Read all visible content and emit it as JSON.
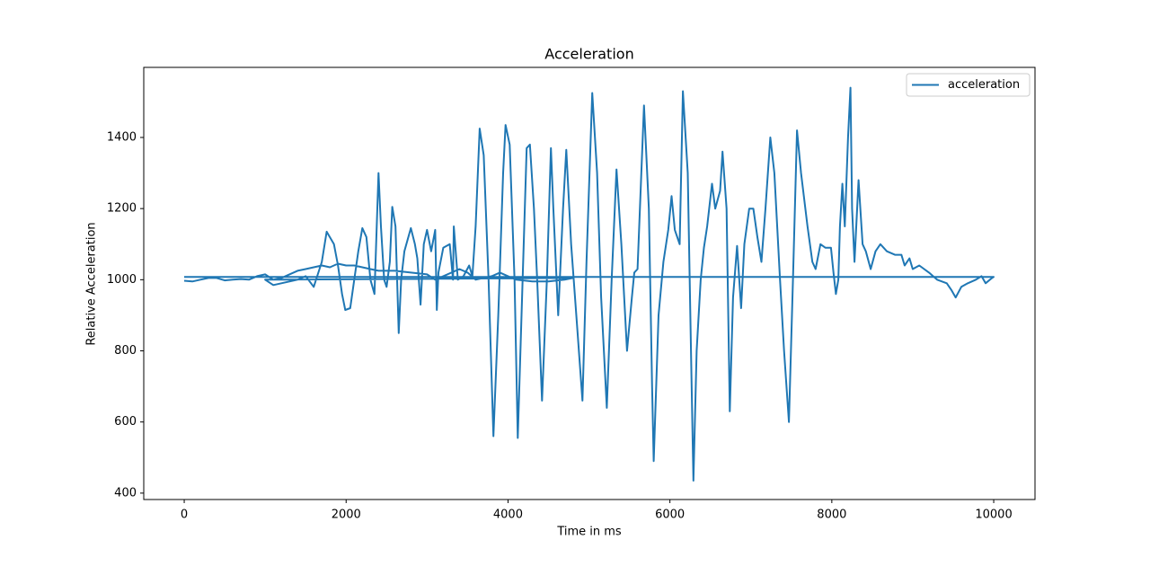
{
  "chart_data": {
    "type": "line",
    "title": "Acceleration",
    "x_label": "Time in ms",
    "y_label": "Relative Acceleration",
    "x": [
      0,
      100,
      200,
      300,
      400,
      500,
      600,
      700,
      800,
      900,
      1000,
      1100,
      1200,
      1300,
      1400,
      1500,
      1600,
      1700,
      1800,
      1900,
      2000,
      2100,
      2200,
      2300,
      2400,
      2600,
      2800,
      3000,
      3100,
      3200,
      3400,
      3500,
      3600,
      3800,
      3900,
      4000,
      4100,
      4300,
      4500,
      4700,
      4800,
      1000,
      1100,
      1200,
      1300,
      1400,
      1500,
      1600,
      1700,
      1760,
      1850,
      1900,
      1950,
      1990,
      2050,
      2100,
      2150,
      2200,
      2250,
      2300,
      2350,
      2400,
      2430,
      2470,
      2500,
      2540,
      2570,
      2610,
      2630,
      2650,
      2680,
      2720,
      2800,
      2850,
      2880,
      2920,
      2960,
      3000,
      3050,
      3100,
      3120,
      3140,
      3200,
      3280,
      3320,
      3330,
      3380,
      3450,
      3520,
      3560,
      3600,
      3650,
      3700,
      3760,
      3820,
      3880,
      3940,
      3970,
      4020,
      4080,
      4120,
      4180,
      4230,
      4270,
      4320,
      4360,
      4420,
      4480,
      4530,
      4560,
      4600,
      4620,
      4680,
      4720,
      4780,
      4860,
      4920,
      4970,
      5040,
      5100,
      5150,
      5220,
      5280,
      5340,
      5400,
      5470,
      5530,
      5560,
      5600,
      5680,
      5740,
      5780,
      5800,
      5860,
      5920,
      5980,
      6020,
      6060,
      6120,
      6160,
      6220,
      6260,
      6290,
      6330,
      6380,
      6420,
      6460,
      6520,
      6560,
      6620,
      6650,
      6700,
      6740,
      6780,
      6830,
      6880,
      6920,
      6980,
      7030,
      7080,
      7130,
      7180,
      7240,
      7290,
      7360,
      7410,
      7470,
      7520,
      7570,
      7620,
      7700,
      7760,
      7800,
      7860,
      7920,
      7990,
      8020,
      8050,
      8080,
      8100,
      8130,
      8160,
      8200,
      8230,
      8250,
      8280,
      8330,
      8380,
      8420,
      8480,
      8540,
      8600,
      8680,
      8780,
      8860,
      8900,
      8960,
      9000,
      9080,
      9200,
      9300,
      9420,
      9480,
      9530,
      9600,
      9680,
      9780,
      9850,
      9900,
      9980,
      10000,
      0
    ],
    "series": [
      {
        "name": "acceleration",
        "color": "#1f77b4",
        "values": [
          997,
          995,
          1000,
          1005,
          1005,
          998,
          1000,
          1002,
          1000,
          1010,
          1015,
          1000,
          1005,
          1015,
          1025,
          1030,
          1035,
          1040,
          1035,
          1045,
          1040,
          1040,
          1035,
          1030,
          1025,
          1025,
          1020,
          1015,
          1000,
          1010,
          1030,
          1020,
          1000,
          1010,
          1020,
          1010,
          1000,
          995,
          995,
          1000,
          1005,
          1000,
          985,
          990,
          995,
          1000,
          1010,
          980,
          1050,
          1135,
          1100,
          1040,
          960,
          915,
          920,
          1000,
          1080,
          1145,
          1120,
          1000,
          960,
          1300,
          1150,
          1000,
          980,
          1050,
          1205,
          1150,
          1000,
          850,
          1000,
          1080,
          1145,
          1100,
          1060,
          930,
          1100,
          1140,
          1080,
          1140,
          915,
          1020,
          1090,
          1100,
          1000,
          1150,
          1000,
          1010,
          1040,
          1010,
          1150,
          1425,
          1350,
          1000,
          560,
          900,
          1300,
          1435,
          1380,
          1000,
          555,
          1000,
          1370,
          1380,
          1200,
          1000,
          660,
          1000,
          1370,
          1200,
          1000,
          900,
          1200,
          1365,
          1100,
          850,
          660,
          1050,
          1525,
          1300,
          950,
          640,
          1000,
          1310,
          1100,
          800,
          950,
          1020,
          1030,
          1490,
          1200,
          700,
          490,
          900,
          1050,
          1140,
          1235,
          1140,
          1100,
          1530,
          1300,
          800,
          435,
          800,
          1000,
          1090,
          1150,
          1270,
          1200,
          1250,
          1360,
          1200,
          630,
          950,
          1095,
          920,
          1100,
          1200,
          1200,
          1120,
          1050,
          1200,
          1400,
          1300,
          1000,
          800,
          600,
          1000,
          1420,
          1300,
          1150,
          1050,
          1030,
          1100,
          1090,
          1090,
          1020,
          960,
          1000,
          1150,
          1270,
          1150,
          1400,
          1540,
          1200,
          1050,
          1280,
          1100,
          1080,
          1030,
          1080,
          1100,
          1080,
          1070,
          1070,
          1040,
          1060,
          1030,
          1040,
          1020,
          1000,
          990,
          970,
          950,
          980,
          990,
          1000,
          1010,
          990,
          1005,
          1008,
          1008
        ]
      }
    ],
    "xlim": [
      -500,
      10510
    ],
    "ylim": [
      382,
      1597
    ],
    "xticks": [
      0,
      2000,
      4000,
      6000,
      8000,
      10000
    ],
    "yticks": [
      400,
      600,
      800,
      1000,
      1200,
      1400
    ],
    "legend": "upper right"
  }
}
